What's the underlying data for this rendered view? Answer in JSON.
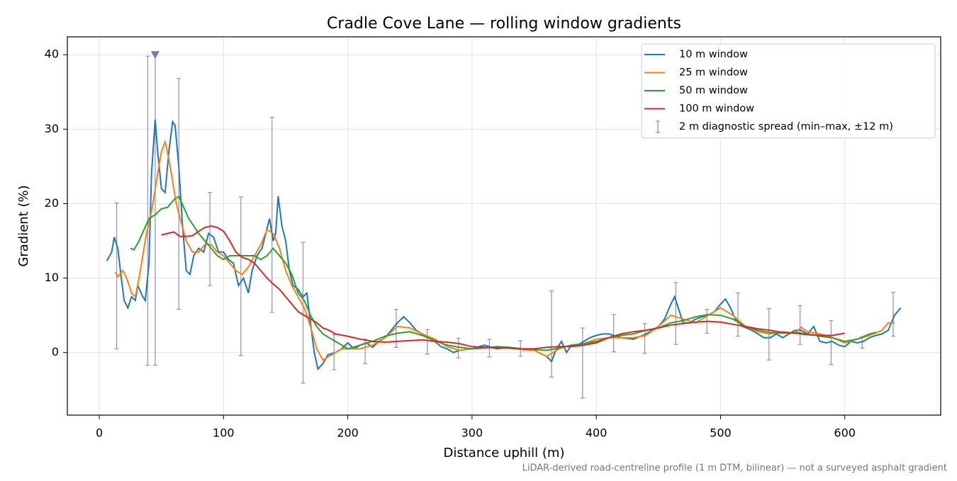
{
  "chart_data": {
    "type": "line",
    "title": "Cradle Cove Lane — rolling window gradients",
    "x_label": "Distance uphill (m)",
    "y_label": "Gradient (%)",
    "footnote": "LiDAR-derived road-centreline profile (1 m DTM, bilinear) — not a surveyed asphalt gradient",
    "xlim": [
      -25.7,
      677.2
    ],
    "ylim": [
      -8.4,
      42.4
    ],
    "xticks": [
      0,
      100,
      200,
      300,
      400,
      500,
      600
    ],
    "yticks": [
      0,
      10,
      20,
      30,
      40
    ],
    "grid": true,
    "legend": "upper right",
    "series": [
      {
        "name": "10 m window",
        "color": "#1f77b4",
        "x": [
          6,
          10,
          12,
          15,
          17,
          20,
          23,
          26,
          29,
          31,
          35,
          37,
          40,
          42,
          45,
          47,
          50,
          53,
          56,
          59,
          61,
          64,
          67,
          70,
          73,
          76,
          80,
          84,
          88,
          92,
          96,
          100,
          104,
          108,
          112,
          116,
          120,
          123,
          127,
          131,
          134,
          137,
          140,
          142,
          144,
          147,
          150,
          153,
          156,
          160,
          164,
          167,
          170,
          173,
          176,
          180,
          184,
          190,
          195,
          200,
          205,
          210,
          215,
          220,
          225,
          230,
          235,
          240,
          245,
          250,
          255,
          260,
          265,
          270,
          275,
          280,
          285,
          290,
          300,
          310,
          320,
          330,
          340,
          350,
          360,
          364,
          368,
          372,
          376,
          380,
          385,
          390,
          395,
          400,
          405,
          410,
          420,
          430,
          440,
          450,
          455,
          460,
          463,
          466,
          470,
          475,
          480,
          485,
          490,
          495,
          500,
          504,
          508,
          512,
          518,
          525,
          530,
          535,
          540,
          545,
          550,
          555,
          560,
          565,
          570,
          575,
          580,
          585,
          590,
          595,
          600,
          605,
          610,
          615,
          620,
          625,
          630,
          635,
          640,
          645
        ],
        "values": [
          12.3,
          13.5,
          15.5,
          14,
          11,
          7,
          6,
          7.5,
          7,
          9,
          7.5,
          7,
          12,
          24,
          31.3,
          27,
          22,
          21.5,
          27,
          31,
          30.5,
          25,
          17,
          11,
          10.5,
          13,
          14,
          13.5,
          16,
          15.5,
          13.5,
          13.5,
          12.5,
          12,
          9,
          10,
          8,
          11,
          13,
          14,
          16,
          18,
          15,
          16,
          21,
          17,
          15,
          11,
          9,
          8.5,
          7.5,
          8,
          4,
          0,
          -2.2,
          -1.5,
          -0.3,
          0,
          0.5,
          1.3,
          0.5,
          1,
          1.3,
          0.7,
          1.5,
          2,
          3,
          4,
          4.8,
          4,
          3,
          2.5,
          2,
          1.5,
          0.8,
          0.5,
          0,
          0.3,
          0.5,
          1,
          0.5,
          0.7,
          0.4,
          0.3,
          -0.5,
          -1.2,
          0.5,
          1.5,
          0,
          1,
          1,
          1.5,
          2,
          2.3,
          2.5,
          2.5,
          2,
          1.8,
          2.5,
          3.5,
          4.5,
          6.5,
          7.5,
          6,
          4,
          4,
          4.5,
          4.8,
          5,
          5.5,
          6.5,
          7.2,
          6,
          4.5,
          3.5,
          3,
          2.5,
          2,
          2,
          2.5,
          2,
          2.5,
          3,
          3,
          2.5,
          3.5,
          1.5,
          1.3,
          1.5,
          1,
          0.8,
          1.5,
          1.3,
          1.5,
          2,
          2.3,
          2.5,
          3,
          5,
          6
        ]
      },
      {
        "name": "25 m window",
        "color": "#ff7f0e",
        "x": [
          13,
          15,
          19,
          22,
          26,
          29,
          32,
          35,
          38,
          42,
          46,
          50,
          53,
          56,
          59,
          62,
          65,
          70,
          75,
          80,
          85,
          90,
          95,
          100,
          105,
          110,
          115,
          120,
          125,
          130,
          135,
          140,
          145,
          150,
          155,
          160,
          165,
          170,
          175,
          180,
          185,
          190,
          195,
          200,
          210,
          220,
          230,
          240,
          250,
          260,
          270,
          280,
          290,
          300,
          310,
          320,
          330,
          340,
          350,
          360,
          370,
          380,
          390,
          400,
          410,
          420,
          430,
          440,
          450,
          460,
          470,
          480,
          490,
          500,
          510,
          520,
          530,
          540,
          550,
          560,
          565,
          570,
          580,
          590,
          600,
          610,
          620,
          630,
          635,
          640
        ],
        "values": [
          10.8,
          10.2,
          11,
          10,
          8,
          7.5,
          10,
          13,
          16,
          19,
          23,
          27,
          28.3,
          26,
          23,
          20,
          18,
          15,
          13.5,
          13.5,
          14.5,
          14.5,
          13.5,
          13,
          12,
          11,
          10.5,
          11.5,
          13,
          14.5,
          16.5,
          16,
          14,
          11,
          9,
          7.5,
          6,
          3.5,
          0.5,
          -1,
          -0.5,
          0,
          0.5,
          0.5,
          0.5,
          1,
          2,
          3.5,
          3.3,
          2.5,
          1.8,
          0.8,
          0.3,
          0.5,
          0.7,
          0.7,
          0.6,
          0.4,
          0.3,
          -0.5,
          0.5,
          1,
          1.2,
          1.8,
          2,
          2,
          2,
          2.3,
          3.5,
          5,
          4.5,
          4,
          5,
          6,
          5,
          3.5,
          2.8,
          2.5,
          2.8,
          2.6,
          3.4,
          2.8,
          2.5,
          2,
          1.3,
          1.8,
          2.3,
          3,
          4,
          4
        ]
      },
      {
        "name": "50 m window",
        "color": "#2ca02c",
        "x": [
          25,
          28,
          32,
          36,
          40,
          45,
          50,
          55,
          60,
          64,
          68,
          72,
          76,
          80,
          85,
          90,
          95,
          100,
          105,
          110,
          115,
          120,
          125,
          130,
          135,
          140,
          145,
          150,
          155,
          160,
          165,
          170,
          175,
          180,
          185,
          190,
          200,
          210,
          220,
          230,
          240,
          250,
          260,
          270,
          280,
          290,
          300,
          310,
          320,
          330,
          340,
          350,
          360,
          370,
          380,
          390,
          400,
          410,
          420,
          430,
          440,
          450,
          460,
          470,
          480,
          490,
          500,
          510,
          520,
          530,
          540,
          550,
          560,
          570,
          580,
          590,
          600,
          610,
          620,
          625
        ],
        "values": [
          14,
          13.8,
          15,
          16.5,
          18,
          18.5,
          19.3,
          19.5,
          20.5,
          21,
          19.5,
          18,
          17,
          16,
          15,
          14,
          13,
          12.5,
          13,
          13,
          13,
          13,
          13,
          12.5,
          13,
          14,
          13,
          12,
          10.5,
          8,
          7,
          5,
          3.5,
          2.5,
          2,
          1.5,
          0.5,
          1,
          1.5,
          2.2,
          2.6,
          2.8,
          2.3,
          1.6,
          1,
          0.7,
          0.5,
          0.6,
          0.8,
          0.7,
          0.5,
          0.4,
          0.3,
          0.6,
          1,
          1.2,
          1.5,
          2,
          2.3,
          2.5,
          3,
          3.3,
          4,
          4.3,
          4.8,
          5.1,
          5,
          4.5,
          3.5,
          3,
          2.7,
          2.6,
          2.7,
          2.5,
          2.2,
          2,
          1.5,
          1.8,
          2.5,
          2.7
        ]
      },
      {
        "name": "100 m window",
        "color": "#d62728",
        "x": [
          50,
          55,
          60,
          65,
          70,
          75,
          80,
          85,
          90,
          95,
          100,
          105,
          110,
          115,
          120,
          125,
          130,
          135,
          140,
          145,
          150,
          155,
          160,
          165,
          170,
          175,
          180,
          185,
          190,
          200,
          210,
          220,
          230,
          240,
          250,
          260,
          270,
          280,
          290,
          300,
          310,
          320,
          330,
          340,
          350,
          360,
          370,
          380,
          390,
          400,
          410,
          420,
          430,
          440,
          450,
          460,
          470,
          480,
          490,
          500,
          510,
          520,
          530,
          540,
          550,
          560,
          570,
          580,
          590,
          600
        ],
        "values": [
          15.8,
          16,
          16.2,
          15.6,
          15.6,
          15.7,
          16.3,
          16.8,
          17,
          16.8,
          16.3,
          15,
          13.5,
          12.8,
          12.5,
          12,
          11,
          10,
          9.2,
          8.5,
          7.5,
          6.5,
          5.5,
          5,
          4.5,
          4,
          3.3,
          3,
          2.5,
          2.2,
          1.8,
          1.5,
          1.4,
          1.5,
          1.6,
          1.7,
          1.5,
          1.4,
          1.2,
          0.8,
          0.7,
          0.6,
          0.6,
          0.5,
          0.5,
          0.7,
          0.8,
          0.8,
          1,
          1.3,
          2,
          2.5,
          2.8,
          3,
          3.3,
          3.7,
          3.9,
          4.1,
          4.2,
          4.1,
          3.8,
          3.5,
          3.2,
          3,
          2.7,
          2.6,
          2.4,
          2.3,
          2.3,
          2.6
        ]
      }
    ],
    "errorbars": {
      "name": "2 m diagnostic spread (min–max, ±12 m)",
      "color": "#9a94c0",
      "x": [
        14,
        39,
        45,
        64,
        89,
        114,
        139,
        164,
        189,
        214,
        239,
        264,
        289,
        314,
        339,
        364,
        389,
        414,
        439,
        464,
        489,
        514,
        539,
        564,
        589,
        614,
        639
      ],
      "low": [
        0.5,
        -1.7,
        -1.7,
        5.8,
        9,
        -0.4,
        5.4,
        -4.1,
        -2.3,
        -1.5,
        0.7,
        -0.2,
        -0.7,
        -0.6,
        -0.5,
        -3.3,
        -6.1,
        0.1,
        -0.1,
        1.1,
        2.6,
        2.2,
        -1,
        1.1,
        -1.6,
        0.6,
        2.2
      ],
      "high": [
        20.1,
        39.8,
        40,
        36.8,
        21.5,
        20.9,
        31.6,
        14.8,
        2.4,
        1.8,
        5.8,
        3.1,
        1.9,
        1.8,
        1.6,
        8.3,
        3.3,
        5.1,
        3.9,
        9.4,
        5.8,
        8,
        5.9,
        6.3,
        4.3,
        2.1,
        8.1
      ]
    },
    "marker": {
      "x": 45,
      "y": 40,
      "color": "#7f77a8"
    }
  }
}
